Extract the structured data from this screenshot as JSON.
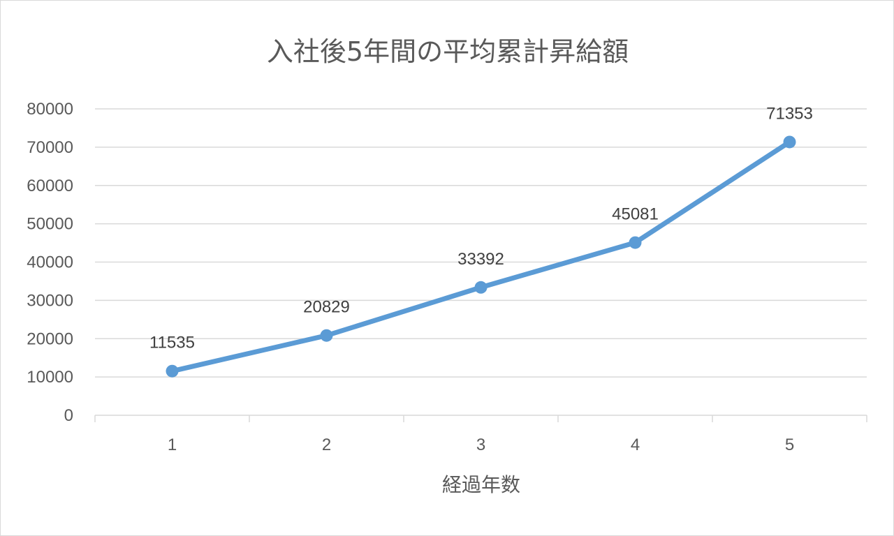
{
  "chart_data": {
    "type": "line",
    "title": "入社後5年間の平均累計昇給額",
    "xlabel": "経過年数",
    "ylabel": "",
    "categories": [
      "1",
      "2",
      "3",
      "4",
      "5"
    ],
    "series": [
      {
        "values": [
          11535,
          20829,
          33392,
          45081,
          71353
        ]
      }
    ],
    "data_labels": [
      "11535",
      "20829",
      "33392",
      "45081",
      "71353"
    ],
    "ylim": [
      0,
      80000
    ],
    "y_ticks": [
      "0",
      "10000",
      "20000",
      "30000",
      "40000",
      "50000",
      "60000",
      "70000",
      "80000"
    ],
    "grid": true,
    "legend": "none",
    "colors": {
      "series": "#5b9bd5",
      "grid": "#d9d9d9",
      "text": "#595959"
    }
  }
}
